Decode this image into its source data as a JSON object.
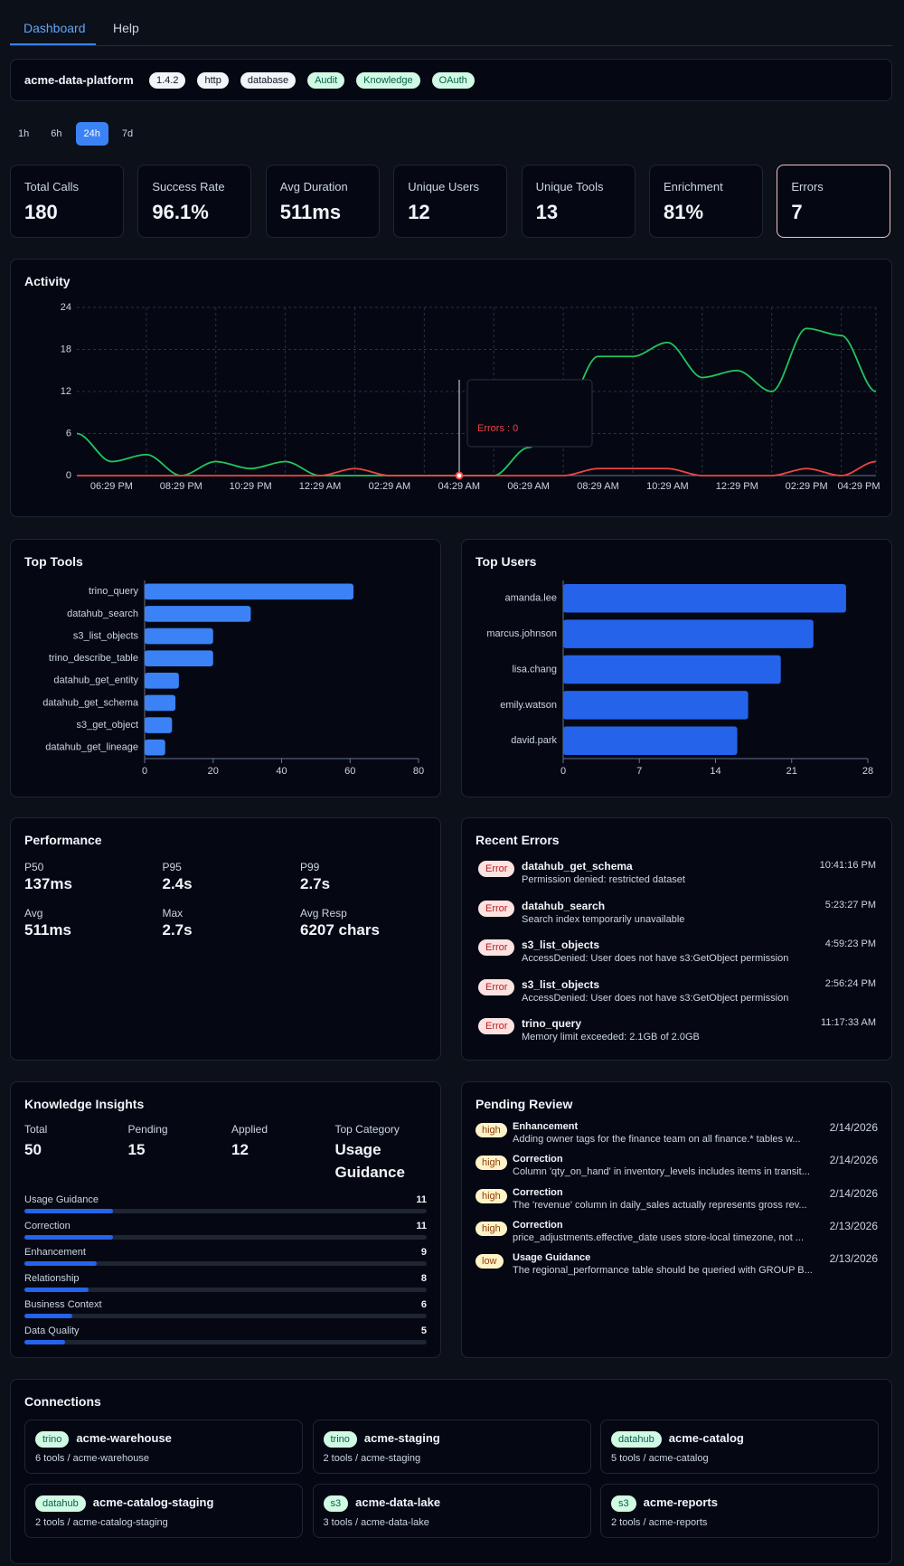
{
  "tabs": [
    "Dashboard",
    "Help"
  ],
  "header": {
    "name": "acme-data-platform",
    "badges": [
      "1.4.2",
      "http",
      "database",
      "Audit",
      "Knowledge",
      "OAuth"
    ]
  },
  "time_ranges": [
    "1h",
    "6h",
    "24h",
    "7d"
  ],
  "stats": [
    {
      "label": "Total Calls",
      "value": 180
    },
    {
      "label": "Success Rate",
      "value": "96.1%"
    },
    {
      "label": "Avg Duration",
      "value": "511ms"
    },
    {
      "label": "Unique Users",
      "value": 12
    },
    {
      "label": "Unique Tools",
      "value": 13
    },
    {
      "label": "Enrichment",
      "value": "81%"
    },
    {
      "label": "Errors",
      "value": 7
    }
  ],
  "chart_data": [
    {
      "type": "line",
      "title": "Activity",
      "categories": [
        null,
        "06:29 PM",
        null,
        "08:29 PM",
        null,
        "10:29 PM",
        null,
        "12:29 AM",
        null,
        "02:29 AM",
        null,
        "04:29 AM",
        null,
        "06:29 AM",
        null,
        "08:29 AM",
        null,
        "10:29 AM",
        null,
        "12:29 PM",
        null,
        "02:29 PM",
        null,
        "04:29 PM"
      ],
      "series": [
        {
          "color": "#22c55e",
          "values": [
            6,
            2,
            3,
            0,
            2,
            1,
            2,
            0,
            0,
            0,
            0,
            0,
            0,
            4,
            9,
            17,
            17,
            19,
            14,
            15,
            12,
            21,
            20,
            12
          ]
        },
        {
          "color": "#ef4444",
          "values": [
            0,
            0,
            0,
            0,
            0,
            0,
            0,
            0,
            1,
            0,
            0,
            0,
            0,
            0,
            0,
            1,
            1,
            1,
            0,
            0,
            0,
            1,
            0,
            2
          ]
        }
      ],
      "ylim": [
        0,
        24
      ],
      "yticks": [
        0,
        6,
        12,
        18,
        24
      ],
      "grid": true,
      "tooltip": "Errors : 0"
    },
    {
      "type": "bar",
      "orientation": "horizontal",
      "title": "Top Tools",
      "categories": [
        "trino_query",
        "datahub_search",
        "s3_list_objects",
        "trino_describe_table",
        "datahub_get_entity",
        "datahub_get_schema",
        "s3_get_object",
        "datahub_get_lineage"
      ],
      "values": [
        61,
        31,
        20,
        20,
        10,
        9,
        8,
        6
      ],
      "color": "#3b82f6",
      "xlim": [
        0,
        80
      ],
      "xticks": [
        0,
        20,
        40,
        60,
        80
      ]
    },
    {
      "type": "bar",
      "orientation": "horizontal",
      "title": "Top Users",
      "categories": [
        "amanda.lee",
        "marcus.johnson",
        "lisa.chang",
        "emily.watson",
        "david.park"
      ],
      "values": [
        26,
        23,
        20,
        17,
        16
      ],
      "color": "#2563eb",
      "xlim": [
        0,
        28
      ],
      "xticks": [
        0,
        7,
        14,
        21,
        28
      ]
    }
  ],
  "performance": {
    "title": "Performance",
    "metrics": [
      {
        "label": "P50",
        "value": "137ms"
      },
      {
        "label": "P95",
        "value": "2.4s"
      },
      {
        "label": "P99",
        "value": "2.7s"
      },
      {
        "label": "Avg",
        "value": "511ms"
      },
      {
        "label": "Max",
        "value": "2.7s"
      },
      {
        "label": "Avg Resp",
        "value": "6207 chars"
      }
    ]
  },
  "recent_errors": {
    "title": "Recent Errors",
    "items": [
      {
        "badge": "Error",
        "tool": "datahub_get_schema",
        "message": "Permission denied: restricted dataset",
        "time": "10:41:16 PM"
      },
      {
        "badge": "Error",
        "tool": "datahub_search",
        "message": "Search index temporarily unavailable",
        "time": "5:23:27 PM"
      },
      {
        "badge": "Error",
        "tool": "s3_list_objects",
        "message": "AccessDenied: User does not have s3:GetObject permission",
        "time": "4:59:23 PM"
      },
      {
        "badge": "Error",
        "tool": "s3_list_objects",
        "message": "AccessDenied: User does not have s3:GetObject permission",
        "time": "2:56:24 PM"
      },
      {
        "badge": "Error",
        "tool": "trino_query",
        "message": "Memory limit exceeded: 2.1GB of 2.0GB",
        "time": "11:17:33 AM"
      }
    ]
  },
  "knowledge": {
    "title": "Knowledge Insights",
    "totals": [
      {
        "label": "Total",
        "value": 50
      },
      {
        "label": "Pending",
        "value": 15
      },
      {
        "label": "Applied",
        "value": 12
      },
      {
        "label": "Top Category",
        "value": "Usage Guidance"
      }
    ],
    "categories": [
      {
        "name": "Usage Guidance",
        "count": 11
      },
      {
        "name": "Correction",
        "count": 11
      },
      {
        "name": "Enhancement",
        "count": 9
      },
      {
        "name": "Relationship",
        "count": 8
      },
      {
        "name": "Business Context",
        "count": 6
      },
      {
        "name": "Data Quality",
        "count": 5
      }
    ]
  },
  "pending_review": {
    "title": "Pending Review",
    "items": [
      {
        "priority": "high",
        "title": "Enhancement",
        "text": "Adding owner tags for the finance team on all finance.* tables w...",
        "date": "2/14/2026"
      },
      {
        "priority": "high",
        "title": "Correction",
        "text": "Column 'qty_on_hand' in inventory_levels includes items in transit...",
        "date": "2/14/2026"
      },
      {
        "priority": "high",
        "title": "Correction",
        "text": "The 'revenue' column in daily_sales actually represents gross rev...",
        "date": "2/14/2026"
      },
      {
        "priority": "high",
        "title": "Correction",
        "text": "price_adjustments.effective_date uses store-local timezone, not ...",
        "date": "2/13/2026"
      },
      {
        "priority": "low",
        "title": "Usage Guidance",
        "text": "The regional_performance table should be queried with GROUP B...",
        "date": "2/13/2026"
      }
    ]
  },
  "connections": {
    "title": "Connections",
    "items": [
      {
        "type": "trino",
        "name": "acme-warehouse",
        "detail": "6 tools / acme-warehouse"
      },
      {
        "type": "trino",
        "name": "acme-staging",
        "detail": "2 tools / acme-staging"
      },
      {
        "type": "datahub",
        "name": "acme-catalog",
        "detail": "5 tools / acme-catalog"
      },
      {
        "type": "datahub",
        "name": "acme-catalog-staging",
        "detail": "2 tools / acme-catalog-staging"
      },
      {
        "type": "s3",
        "name": "acme-data-lake",
        "detail": "3 tools / acme-data-lake"
      },
      {
        "type": "s3",
        "name": "acme-reports",
        "detail": "2 tools / acme-reports"
      }
    ]
  }
}
